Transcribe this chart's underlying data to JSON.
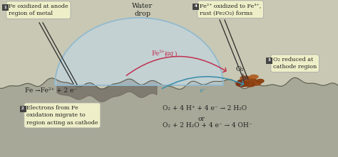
{
  "bg_upper": "#c8c8b8",
  "bg_lower": "#d0d0c0",
  "metal_fill": "#a8a898",
  "metal_dark_fill": "#706860",
  "metal_edge": "#606050",
  "water_fill": "#c0d8e8",
  "water_edge": "#90b8cc",
  "water_alpha": 0.6,
  "rust_color1": "#8b4010",
  "rust_color2": "#a05520",
  "rust_color3": "#c07030",
  "label_box_color": "#eeeec8",
  "label_box_edge": "#aaaaaa",
  "title": "Water\ndrop",
  "label1_num": "1",
  "label1": "Fe oxidized at anode\nregion of metal",
  "label2_num": "2",
  "label2": "Electrons from Fe\noxidation migrate to\nregion acting as cathode",
  "label3_num": "3",
  "label3": "O₂ reduced at\ncathode region",
  "label4_num": "4",
  "label4": "Fe²⁺ oxidized to Fe³⁺,\nrust (Fe₂O₃) forms",
  "eq1": "Fe →Fe²⁺ + 2 e⁻",
  "eq2_text": "Fe²⁺(",
  "eq2_italic": "aq",
  "eq2_end": ")",
  "eq3": "e⁻",
  "eq4": "O₂",
  "eq5a": "O₂ + 4 H⁺ + 4 e⁻ → 2 H₂O",
  "eq6": "or",
  "eq7a": "O₂ + 2 H₂O + 4 e⁻ → 4 OH⁻",
  "arrow_red": "#c03050",
  "arrow_blue": "#4090aa",
  "arrow_dark": "#554040",
  "text_dark": "#222222",
  "num_box_color": "#444444"
}
